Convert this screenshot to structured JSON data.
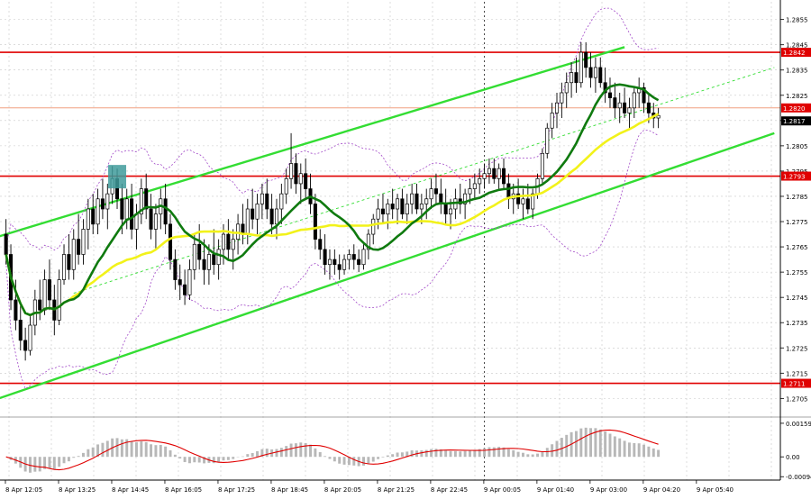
{
  "chart_data": {
    "type": "candlestick",
    "grid": true,
    "colors": {
      "background": "#ffffff",
      "grid": "#c8c8c8",
      "candle": "#000000",
      "level_line": "#e00000",
      "channel": "#33dd33",
      "ma_fast": "#0f7a0f",
      "ma_slow": "#f2f21a",
      "bands": "#a24ac8",
      "histogram": "#b8b8b8",
      "signal": "#e00000",
      "marker": "#3f9b9b",
      "price_tag": "#e00000",
      "current_tag": "#000000"
    },
    "price_axis": {
      "ylim": [
        1.2698,
        1.2862
      ],
      "ticks": [
        "1.2855",
        "1.2845",
        "1.2835",
        "1.2825",
        "1.2815",
        "1.2805",
        "1.2795",
        "1.2785",
        "1.2775",
        "1.2765",
        "1.2755",
        "1.2745",
        "1.2735",
        "1.2725",
        "1.2715",
        "1.2705"
      ]
    },
    "levels": [
      {
        "price": 1.2842,
        "label": "1.2842"
      },
      {
        "price": 1.2793,
        "label": "1.2793"
      },
      {
        "price": 1.2711,
        "label": "1.2711"
      }
    ],
    "reference_line": {
      "price": 1.282,
      "label": "1.2820"
    },
    "current_price": {
      "price": 1.2817,
      "label": "1.2817"
    },
    "time_axis": {
      "n_bars": 160,
      "labels": [
        {
          "bar": 0,
          "text": "8 Apr 12:05"
        },
        {
          "bar": 11,
          "text": "8 Apr 13:25"
        },
        {
          "bar": 22,
          "text": "8 Apr 14:45"
        },
        {
          "bar": 33,
          "text": "8 Apr 16:05"
        },
        {
          "bar": 44,
          "text": "8 Apr 17:25"
        },
        {
          "bar": 55,
          "text": "8 Apr 18:45"
        },
        {
          "bar": 66,
          "text": "8 Apr 20:05"
        },
        {
          "bar": 77,
          "text": "8 Apr 21:25"
        },
        {
          "bar": 88,
          "text": "8 Apr 22:45"
        },
        {
          "bar": 99,
          "text": "9 Apr 00:05"
        },
        {
          "bar": 110,
          "text": "9 Apr 01:40"
        },
        {
          "bar": 121,
          "text": "9 Apr 03:00"
        },
        {
          "bar": 132,
          "text": "9 Apr 04:20"
        },
        {
          "bar": 143,
          "text": "9 Apr 05:40"
        }
      ],
      "session_separator_bar": 99
    },
    "candles": [
      {
        "o": 1.277,
        "h": 1.2776,
        "l": 1.2758,
        "c": 1.2762
      },
      {
        "o": 1.2762,
        "h": 1.2766,
        "l": 1.274,
        "c": 1.2744
      },
      {
        "o": 1.2744,
        "h": 1.2752,
        "l": 1.2732,
        "c": 1.2736
      },
      {
        "o": 1.2736,
        "h": 1.2742,
        "l": 1.2724,
        "c": 1.2728
      },
      {
        "o": 1.2728,
        "h": 1.2733,
        "l": 1.272,
        "c": 1.2724
      },
      {
        "o": 1.2724,
        "h": 1.2738,
        "l": 1.2722,
        "c": 1.2734
      },
      {
        "o": 1.2734,
        "h": 1.2748,
        "l": 1.273,
        "c": 1.2744
      },
      {
        "o": 1.2744,
        "h": 1.2752,
        "l": 1.2736,
        "c": 1.274
      },
      {
        "o": 1.274,
        "h": 1.2756,
        "l": 1.2738,
        "c": 1.2752
      },
      {
        "o": 1.2752,
        "h": 1.276,
        "l": 1.274,
        "c": 1.2744
      },
      {
        "o": 1.2744,
        "h": 1.275,
        "l": 1.273,
        "c": 1.2736
      },
      {
        "o": 1.2736,
        "h": 1.2756,
        "l": 1.2734,
        "c": 1.2752
      },
      {
        "o": 1.2752,
        "h": 1.2766,
        "l": 1.275,
        "c": 1.2762
      },
      {
        "o": 1.2762,
        "h": 1.277,
        "l": 1.2752,
        "c": 1.2756
      },
      {
        "o": 1.2756,
        "h": 1.2772,
        "l": 1.2752,
        "c": 1.2768
      },
      {
        "o": 1.2768,
        "h": 1.2778,
        "l": 1.2758,
        "c": 1.2762
      },
      {
        "o": 1.2762,
        "h": 1.2776,
        "l": 1.2758,
        "c": 1.2772
      },
      {
        "o": 1.2772,
        "h": 1.2784,
        "l": 1.2764,
        "c": 1.278
      },
      {
        "o": 1.278,
        "h": 1.2786,
        "l": 1.277,
        "c": 1.2774
      },
      {
        "o": 1.2774,
        "h": 1.2788,
        "l": 1.277,
        "c": 1.2784
      },
      {
        "o": 1.2784,
        "h": 1.2792,
        "l": 1.2776,
        "c": 1.278
      },
      {
        "o": 1.278,
        "h": 1.279,
        "l": 1.2772,
        "c": 1.2786
      },
      {
        "o": 1.2786,
        "h": 1.2797,
        "l": 1.2782,
        "c": 1.2792
      },
      {
        "o": 1.2792,
        "h": 1.2796,
        "l": 1.278,
        "c": 1.2784
      },
      {
        "o": 1.2784,
        "h": 1.279,
        "l": 1.277,
        "c": 1.2776
      },
      {
        "o": 1.2776,
        "h": 1.2788,
        "l": 1.2772,
        "c": 1.2784
      },
      {
        "o": 1.2784,
        "h": 1.279,
        "l": 1.2768,
        "c": 1.2772
      },
      {
        "o": 1.2772,
        "h": 1.2782,
        "l": 1.2764,
        "c": 1.2778
      },
      {
        "o": 1.2778,
        "h": 1.2792,
        "l": 1.2774,
        "c": 1.2788
      },
      {
        "o": 1.2788,
        "h": 1.2794,
        "l": 1.2776,
        "c": 1.278
      },
      {
        "o": 1.278,
        "h": 1.2786,
        "l": 1.2768,
        "c": 1.2772
      },
      {
        "o": 1.2772,
        "h": 1.2782,
        "l": 1.2764,
        "c": 1.2778
      },
      {
        "o": 1.2778,
        "h": 1.2788,
        "l": 1.2772,
        "c": 1.2784
      },
      {
        "o": 1.2784,
        "h": 1.279,
        "l": 1.277,
        "c": 1.2774
      },
      {
        "o": 1.2774,
        "h": 1.2778,
        "l": 1.2756,
        "c": 1.276
      },
      {
        "o": 1.276,
        "h": 1.2764,
        "l": 1.2748,
        "c": 1.2752
      },
      {
        "o": 1.2752,
        "h": 1.2758,
        "l": 1.2744,
        "c": 1.275
      },
      {
        "o": 1.275,
        "h": 1.2756,
        "l": 1.2742,
        "c": 1.2746
      },
      {
        "o": 1.2746,
        "h": 1.276,
        "l": 1.2744,
        "c": 1.2756
      },
      {
        "o": 1.2756,
        "h": 1.277,
        "l": 1.2752,
        "c": 1.2766
      },
      {
        "o": 1.2766,
        "h": 1.2774,
        "l": 1.2756,
        "c": 1.276
      },
      {
        "o": 1.276,
        "h": 1.2768,
        "l": 1.275,
        "c": 1.2756
      },
      {
        "o": 1.2756,
        "h": 1.2766,
        "l": 1.275,
        "c": 1.2762
      },
      {
        "o": 1.2762,
        "h": 1.2772,
        "l": 1.2754,
        "c": 1.2758
      },
      {
        "o": 1.2758,
        "h": 1.2768,
        "l": 1.2752,
        "c": 1.2764
      },
      {
        "o": 1.2764,
        "h": 1.2774,
        "l": 1.2758,
        "c": 1.277
      },
      {
        "o": 1.277,
        "h": 1.2776,
        "l": 1.276,
        "c": 1.2764
      },
      {
        "o": 1.2764,
        "h": 1.2772,
        "l": 1.2756,
        "c": 1.2768
      },
      {
        "o": 1.2768,
        "h": 1.2778,
        "l": 1.2762,
        "c": 1.2774
      },
      {
        "o": 1.2774,
        "h": 1.2782,
        "l": 1.2766,
        "c": 1.277
      },
      {
        "o": 1.277,
        "h": 1.2784,
        "l": 1.2766,
        "c": 1.278
      },
      {
        "o": 1.278,
        "h": 1.2788,
        "l": 1.2772,
        "c": 1.2776
      },
      {
        "o": 1.2776,
        "h": 1.2786,
        "l": 1.277,
        "c": 1.2782
      },
      {
        "o": 1.2782,
        "h": 1.279,
        "l": 1.2776,
        "c": 1.2786
      },
      {
        "o": 1.2786,
        "h": 1.2792,
        "l": 1.2776,
        "c": 1.278
      },
      {
        "o": 1.278,
        "h": 1.2786,
        "l": 1.277,
        "c": 1.2774
      },
      {
        "o": 1.2774,
        "h": 1.2784,
        "l": 1.2768,
        "c": 1.278
      },
      {
        "o": 1.278,
        "h": 1.279,
        "l": 1.2774,
        "c": 1.2786
      },
      {
        "o": 1.2786,
        "h": 1.2796,
        "l": 1.2782,
        "c": 1.2792
      },
      {
        "o": 1.2792,
        "h": 1.281,
        "l": 1.2788,
        "c": 1.2798
      },
      {
        "o": 1.2798,
        "h": 1.2802,
        "l": 1.2786,
        "c": 1.279
      },
      {
        "o": 1.279,
        "h": 1.2798,
        "l": 1.2782,
        "c": 1.2794
      },
      {
        "o": 1.2794,
        "h": 1.28,
        "l": 1.2784,
        "c": 1.2788
      },
      {
        "o": 1.2788,
        "h": 1.2794,
        "l": 1.2778,
        "c": 1.2782
      },
      {
        "o": 1.2782,
        "h": 1.2786,
        "l": 1.2764,
        "c": 1.2768
      },
      {
        "o": 1.2768,
        "h": 1.2772,
        "l": 1.276,
        "c": 1.2764
      },
      {
        "o": 1.2764,
        "h": 1.277,
        "l": 1.2754,
        "c": 1.2758
      },
      {
        "o": 1.2758,
        "h": 1.2764,
        "l": 1.2752,
        "c": 1.276
      },
      {
        "o": 1.276,
        "h": 1.2764,
        "l": 1.2754,
        "c": 1.2758
      },
      {
        "o": 1.2758,
        "h": 1.2762,
        "l": 1.2752,
        "c": 1.2756
      },
      {
        "o": 1.2756,
        "h": 1.2762,
        "l": 1.2754,
        "c": 1.276
      },
      {
        "o": 1.276,
        "h": 1.2764,
        "l": 1.2756,
        "c": 1.2762
      },
      {
        "o": 1.2762,
        "h": 1.2766,
        "l": 1.2756,
        "c": 1.276
      },
      {
        "o": 1.276,
        "h": 1.2764,
        "l": 1.2755,
        "c": 1.2758
      },
      {
        "o": 1.2758,
        "h": 1.2766,
        "l": 1.2756,
        "c": 1.2764
      },
      {
        "o": 1.2764,
        "h": 1.2772,
        "l": 1.276,
        "c": 1.277
      },
      {
        "o": 1.277,
        "h": 1.2778,
        "l": 1.2766,
        "c": 1.2776
      },
      {
        "o": 1.2776,
        "h": 1.2784,
        "l": 1.2772,
        "c": 1.278
      },
      {
        "o": 1.278,
        "h": 1.2786,
        "l": 1.2774,
        "c": 1.2778
      },
      {
        "o": 1.2778,
        "h": 1.2784,
        "l": 1.2772,
        "c": 1.2782
      },
      {
        "o": 1.2782,
        "h": 1.2788,
        "l": 1.2776,
        "c": 1.278
      },
      {
        "o": 1.278,
        "h": 1.2786,
        "l": 1.2774,
        "c": 1.2784
      },
      {
        "o": 1.2784,
        "h": 1.2788,
        "l": 1.2776,
        "c": 1.2778
      },
      {
        "o": 1.2778,
        "h": 1.2786,
        "l": 1.2774,
        "c": 1.2782
      },
      {
        "o": 1.2782,
        "h": 1.279,
        "l": 1.2778,
        "c": 1.2786
      },
      {
        "o": 1.2786,
        "h": 1.279,
        "l": 1.2778,
        "c": 1.278
      },
      {
        "o": 1.278,
        "h": 1.2786,
        "l": 1.2774,
        "c": 1.2782
      },
      {
        "o": 1.2782,
        "h": 1.2788,
        "l": 1.2776,
        "c": 1.2784
      },
      {
        "o": 1.2784,
        "h": 1.2792,
        "l": 1.278,
        "c": 1.2788
      },
      {
        "o": 1.2788,
        "h": 1.2794,
        "l": 1.2782,
        "c": 1.2786
      },
      {
        "o": 1.2786,
        "h": 1.2792,
        "l": 1.2778,
        "c": 1.2782
      },
      {
        "o": 1.2782,
        "h": 1.2788,
        "l": 1.2774,
        "c": 1.2778
      },
      {
        "o": 1.2778,
        "h": 1.2784,
        "l": 1.2772,
        "c": 1.278
      },
      {
        "o": 1.278,
        "h": 1.2788,
        "l": 1.2776,
        "c": 1.2784
      },
      {
        "o": 1.2784,
        "h": 1.279,
        "l": 1.2778,
        "c": 1.2782
      },
      {
        "o": 1.2782,
        "h": 1.2788,
        "l": 1.2776,
        "c": 1.2786
      },
      {
        "o": 1.2786,
        "h": 1.2792,
        "l": 1.2782,
        "c": 1.2788
      },
      {
        "o": 1.2788,
        "h": 1.2794,
        "l": 1.2784,
        "c": 1.279
      },
      {
        "o": 1.279,
        "h": 1.2796,
        "l": 1.2786,
        "c": 1.2792
      },
      {
        "o": 1.2792,
        "h": 1.2798,
        "l": 1.2788,
        "c": 1.2794
      },
      {
        "o": 1.2794,
        "h": 1.28,
        "l": 1.279,
        "c": 1.2796
      },
      {
        "o": 1.2796,
        "h": 1.28,
        "l": 1.279,
        "c": 1.2792
      },
      {
        "o": 1.2792,
        "h": 1.2798,
        "l": 1.2788,
        "c": 1.2796
      },
      {
        "o": 1.2796,
        "h": 1.28,
        "l": 1.2788,
        "c": 1.279
      },
      {
        "o": 1.279,
        "h": 1.2794,
        "l": 1.278,
        "c": 1.2784
      },
      {
        "o": 1.2784,
        "h": 1.279,
        "l": 1.2778,
        "c": 1.2786
      },
      {
        "o": 1.2786,
        "h": 1.2792,
        "l": 1.278,
        "c": 1.2782
      },
      {
        "o": 1.2782,
        "h": 1.2788,
        "l": 1.2776,
        "c": 1.2784
      },
      {
        "o": 1.2784,
        "h": 1.279,
        "l": 1.2778,
        "c": 1.278
      },
      {
        "o": 1.278,
        "h": 1.2788,
        "l": 1.2776,
        "c": 1.2786
      },
      {
        "o": 1.2786,
        "h": 1.2794,
        "l": 1.2784,
        "c": 1.2792
      },
      {
        "o": 1.2792,
        "h": 1.2804,
        "l": 1.279,
        "c": 1.2802
      },
      {
        "o": 1.2802,
        "h": 1.2814,
        "l": 1.28,
        "c": 1.2812
      },
      {
        "o": 1.2812,
        "h": 1.2822,
        "l": 1.2808,
        "c": 1.2818
      },
      {
        "o": 1.2818,
        "h": 1.2826,
        "l": 1.2812,
        "c": 1.2822
      },
      {
        "o": 1.2822,
        "h": 1.283,
        "l": 1.2816,
        "c": 1.2826
      },
      {
        "o": 1.2826,
        "h": 1.2834,
        "l": 1.282,
        "c": 1.283
      },
      {
        "o": 1.283,
        "h": 1.2838,
        "l": 1.2824,
        "c": 1.2834
      },
      {
        "o": 1.2834,
        "h": 1.284,
        "l": 1.2826,
        "c": 1.283
      },
      {
        "o": 1.283,
        "h": 1.2846,
        "l": 1.2828,
        "c": 1.2842
      },
      {
        "o": 1.2842,
        "h": 1.2846,
        "l": 1.2832,
        "c": 1.2836
      },
      {
        "o": 1.2836,
        "h": 1.2842,
        "l": 1.2828,
        "c": 1.2832
      },
      {
        "o": 1.2832,
        "h": 1.284,
        "l": 1.2826,
        "c": 1.2836
      },
      {
        "o": 1.2836,
        "h": 1.284,
        "l": 1.2828,
        "c": 1.283
      },
      {
        "o": 1.283,
        "h": 1.2836,
        "l": 1.2822,
        "c": 1.2826
      },
      {
        "o": 1.2826,
        "h": 1.2832,
        "l": 1.282,
        "c": 1.2824
      },
      {
        "o": 1.2824,
        "h": 1.283,
        "l": 1.2816,
        "c": 1.282
      },
      {
        "o": 1.282,
        "h": 1.2826,
        "l": 1.2814,
        "c": 1.2822
      },
      {
        "o": 1.2822,
        "h": 1.2828,
        "l": 1.2816,
        "c": 1.2818
      },
      {
        "o": 1.2818,
        "h": 1.2824,
        "l": 1.2812,
        "c": 1.282
      },
      {
        "o": 1.282,
        "h": 1.2828,
        "l": 1.2816,
        "c": 1.2826
      },
      {
        "o": 1.2826,
        "h": 1.2832,
        "l": 1.282,
        "c": 1.2828
      },
      {
        "o": 1.2828,
        "h": 1.283,
        "l": 1.2818,
        "c": 1.2822
      },
      {
        "o": 1.2822,
        "h": 1.2826,
        "l": 1.2814,
        "c": 1.2818
      },
      {
        "o": 1.2818,
        "h": 1.2822,
        "l": 1.2812,
        "c": 1.2816
      },
      {
        "o": 1.2816,
        "h": 1.282,
        "l": 1.2812,
        "c": 1.2817
      }
    ],
    "channel_upper": [
      {
        "bar": 0,
        "price": 1.277
      },
      {
        "bar": 159,
        "price": 1.2862
      }
    ],
    "channel_lower": [
      {
        "bar": 0,
        "price": 1.2706
      },
      {
        "bar": 159,
        "price": 1.281
      }
    ],
    "marker_bar": 23,
    "macd_axis": {
      "ylim": [
        -0.0011,
        0.0018
      ],
      "ticks": [
        "0.00159",
        "0.00",
        "-0.00094"
      ]
    }
  }
}
